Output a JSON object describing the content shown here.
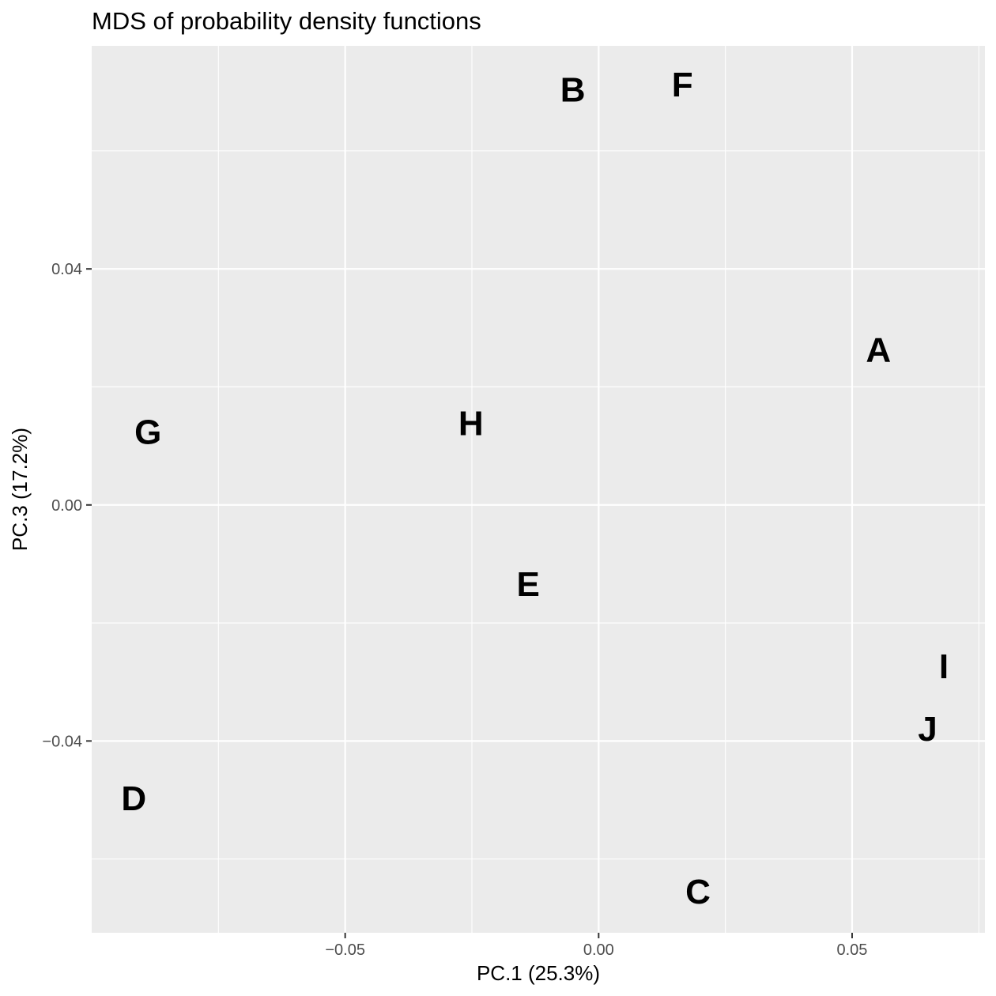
{
  "chart_data": {
    "type": "scatter",
    "title": "MDS of probability density functions",
    "xlabel": "PC.1 (25.3%)",
    "ylabel": "PC.3 (17.2%)",
    "xlim": [
      -0.1,
      0.0762
    ],
    "ylim": [
      -0.0725,
      0.0778
    ],
    "x_ticks": [
      -0.05,
      0.0,
      0.05
    ],
    "x_tick_labels": [
      "−0.05",
      "0.00",
      "0.05"
    ],
    "x_minor_ticks": [
      -0.075,
      -0.025,
      0.025,
      0.075
    ],
    "y_ticks": [
      -0.04,
      0.0,
      0.04
    ],
    "y_tick_labels": [
      "−0.04",
      "0.00",
      "0.04"
    ],
    "y_minor_ticks": [
      -0.06,
      -0.02,
      0.02,
      0.06
    ],
    "grid": true,
    "background": "#ebebeb",
    "grid_color": "#ffffff",
    "points": [
      {
        "label": "A",
        "x": 0.0552,
        "y": 0.0262
      },
      {
        "label": "B",
        "x": -0.0051,
        "y": 0.0703
      },
      {
        "label": "C",
        "x": 0.0196,
        "y": -0.0656
      },
      {
        "label": "D",
        "x": -0.0917,
        "y": -0.0498
      },
      {
        "label": "E",
        "x": -0.0139,
        "y": -0.0135
      },
      {
        "label": "F",
        "x": 0.0165,
        "y": 0.0712
      },
      {
        "label": "G",
        "x": -0.0889,
        "y": 0.0123
      },
      {
        "label": "H",
        "x": -0.0252,
        "y": 0.0138
      },
      {
        "label": "I",
        "x": 0.0681,
        "y": -0.0274
      },
      {
        "label": "J",
        "x": 0.0649,
        "y": -0.038
      }
    ]
  }
}
